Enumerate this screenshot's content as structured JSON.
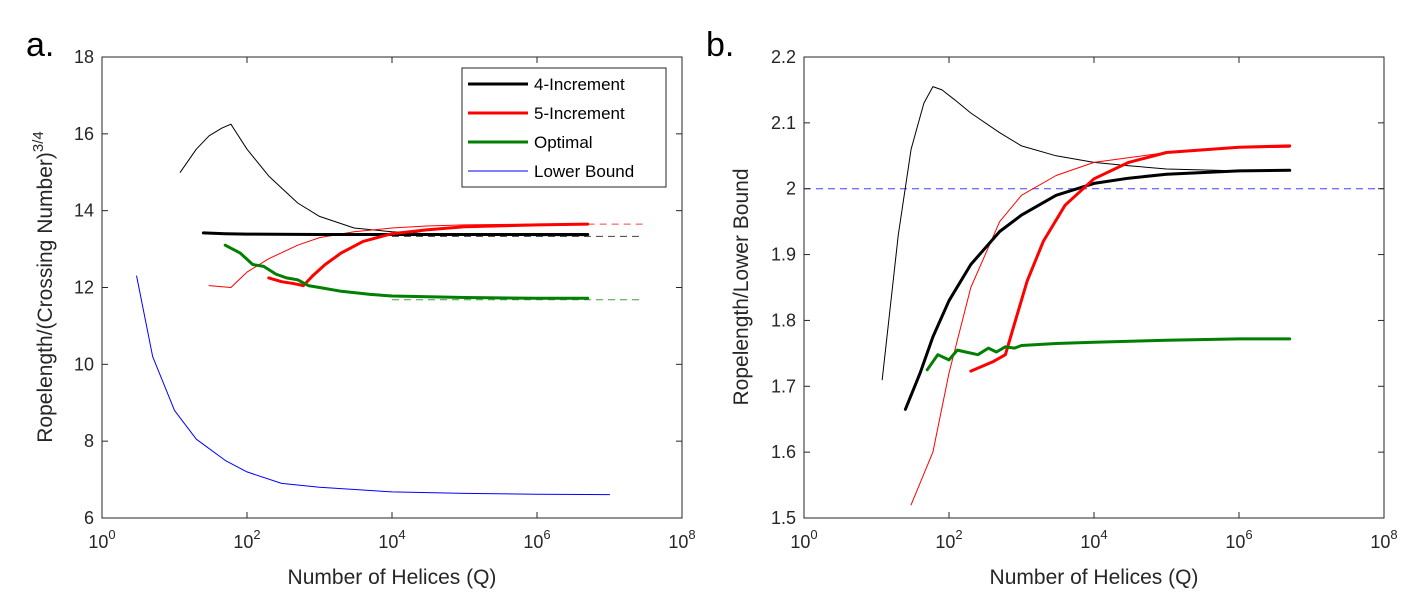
{
  "chart_data": [
    {
      "panel_label": "a.",
      "type": "line",
      "xscale": "log",
      "xlabel": "Number of Helices (Q)",
      "ylabel": "Ropelength/(Crossing Number)",
      "ylabel_exponent": "3/4",
      "xlim": [
        1,
        100000000
      ],
      "ylim": [
        6,
        18
      ],
      "xticks": [
        {
          "base": "10",
          "exp": "0",
          "value": 1
        },
        {
          "base": "10",
          "exp": "2",
          "value": 100
        },
        {
          "base": "10",
          "exp": "4",
          "value": 10000
        },
        {
          "base": "10",
          "exp": "6",
          "value": 1000000
        },
        {
          "base": "10",
          "exp": "8",
          "value": 100000000
        }
      ],
      "yticks": [
        "6",
        "8",
        "10",
        "12",
        "14",
        "16",
        "18"
      ],
      "legend": {
        "position": "top-right",
        "entries": [
          {
            "label": "4-Increment",
            "color": "#000000",
            "width": 3
          },
          {
            "label": "5-Increment",
            "color": "#ff0000",
            "width": 3
          },
          {
            "label": "Optimal",
            "color": "#007f00",
            "width": 3
          },
          {
            "label": "Lower Bound",
            "color": "#0000ff",
            "width": 1
          }
        ]
      },
      "series": [
        {
          "name": "4-Increment (thin)",
          "color": "#000000",
          "width": 1,
          "x": [
            12,
            20,
            30,
            45,
            60,
            100,
            200,
            500,
            1000,
            3000,
            10000,
            30000,
            100000,
            1000000,
            5000000
          ],
          "y": [
            15.0,
            15.6,
            15.95,
            16.15,
            16.25,
            15.6,
            14.9,
            14.2,
            13.85,
            13.55,
            13.45,
            13.4,
            13.38,
            13.35,
            13.35
          ]
        },
        {
          "name": "5-Increment (thin)",
          "color": "#ff0000",
          "width": 1,
          "x": [
            30,
            60,
            100,
            200,
            500,
            1000,
            3000,
            10000,
            30000,
            100000,
            1000000,
            5000000
          ],
          "y": [
            12.05,
            12.0,
            12.4,
            12.75,
            13.1,
            13.3,
            13.45,
            13.55,
            13.6,
            13.63,
            13.65,
            13.65
          ]
        },
        {
          "name": "4-Increment",
          "color": "#000000",
          "width": 3,
          "x": [
            25,
            50,
            100,
            1000,
            10000,
            100000,
            1000000,
            5000000
          ],
          "y": [
            13.42,
            13.4,
            13.39,
            13.38,
            13.38,
            13.38,
            13.38,
            13.38
          ]
        },
        {
          "name": "5-Increment",
          "color": "#ff0000",
          "width": 3,
          "x": [
            200,
            300,
            450,
            600,
            800,
            1200,
            2000,
            4000,
            10000,
            30000,
            100000,
            1000000,
            5000000
          ],
          "y": [
            12.25,
            12.15,
            12.1,
            12.05,
            12.3,
            12.6,
            12.9,
            13.2,
            13.4,
            13.5,
            13.58,
            13.63,
            13.65
          ]
        },
        {
          "name": "Optimal",
          "color": "#007f00",
          "width": 3,
          "x": [
            50,
            80,
            120,
            170,
            250,
            350,
            500,
            700,
            1000,
            2000,
            5000,
            10000,
            100000,
            1000000,
            5000000
          ],
          "y": [
            13.1,
            12.9,
            12.6,
            12.55,
            12.35,
            12.25,
            12.2,
            12.05,
            12.0,
            11.9,
            11.82,
            11.78,
            11.74,
            11.72,
            11.72
          ]
        },
        {
          "name": "Lower Bound",
          "color": "#0000ff",
          "width": 1,
          "x": [
            3,
            5,
            10,
            20,
            50,
            100,
            300,
            1000,
            10000,
            100000,
            1000000,
            10000000
          ],
          "y": [
            12.3,
            10.2,
            8.8,
            8.05,
            7.5,
            7.2,
            6.9,
            6.8,
            6.68,
            6.64,
            6.62,
            6.61
          ]
        }
      ],
      "reference_lines": [
        {
          "color": "#ff0000",
          "y": 13.65,
          "x_from": 5000000,
          "x_to": 30000000
        },
        {
          "color": "#000000",
          "y": 13.33,
          "x_from": 10000,
          "x_to": 30000000
        },
        {
          "color": "#007f00",
          "y": 11.68,
          "x_from": 10000,
          "x_to": 30000000
        }
      ]
    },
    {
      "panel_label": "b.",
      "type": "line",
      "xscale": "log",
      "xlabel": "Number of Helices (Q)",
      "ylabel": "Ropelength/Lower Bound",
      "xlim": [
        1,
        100000000
      ],
      "ylim": [
        1.5,
        2.2
      ],
      "xticks": [
        {
          "base": "10",
          "exp": "0",
          "value": 1
        },
        {
          "base": "10",
          "exp": "2",
          "value": 100
        },
        {
          "base": "10",
          "exp": "4",
          "value": 10000
        },
        {
          "base": "10",
          "exp": "6",
          "value": 1000000
        },
        {
          "base": "10",
          "exp": "8",
          "value": 100000000
        }
      ],
      "yticks": [
        "1.5",
        "1.6",
        "1.7",
        "1.8",
        "1.9",
        "2",
        "2.1",
        "2.2"
      ],
      "series": [
        {
          "name": "4-Increment (thin)",
          "color": "#000000",
          "width": 1,
          "x": [
            12,
            20,
            30,
            45,
            60,
            80,
            120,
            200,
            500,
            1000,
            3000,
            10000,
            30000,
            100000,
            1000000,
            5000000
          ],
          "y": [
            1.71,
            1.93,
            2.06,
            2.13,
            2.155,
            2.15,
            2.135,
            2.115,
            2.085,
            2.065,
            2.05,
            2.04,
            2.035,
            2.03,
            2.027,
            2.027
          ]
        },
        {
          "name": "5-Increment (thin)",
          "color": "#ff0000",
          "width": 1,
          "x": [
            30,
            60,
            100,
            200,
            500,
            1000,
            3000,
            10000,
            100000,
            1000000,
            5000000
          ],
          "y": [
            1.52,
            1.6,
            1.72,
            1.85,
            1.95,
            1.99,
            2.02,
            2.04,
            2.055,
            2.062,
            2.063
          ]
        },
        {
          "name": "4-Increment",
          "color": "#000000",
          "width": 3,
          "x": [
            25,
            40,
            60,
            100,
            200,
            500,
            1000,
            3000,
            10000,
            30000,
            100000,
            1000000,
            5000000
          ],
          "y": [
            1.665,
            1.72,
            1.775,
            1.83,
            1.885,
            1.935,
            1.96,
            1.99,
            2.008,
            2.016,
            2.022,
            2.027,
            2.028
          ]
        },
        {
          "name": "5-Increment",
          "color": "#ff0000",
          "width": 3,
          "x": [
            200,
            400,
            600,
            800,
            1200,
            2000,
            4000,
            10000,
            30000,
            100000,
            1000000,
            5000000
          ],
          "y": [
            1.723,
            1.737,
            1.748,
            1.795,
            1.86,
            1.92,
            1.975,
            2.015,
            2.04,
            2.055,
            2.063,
            2.065
          ]
        },
        {
          "name": "Optimal",
          "color": "#007f00",
          "width": 3,
          "x": [
            50,
            70,
            100,
            130,
            170,
            250,
            350,
            450,
            600,
            800,
            1000,
            3000,
            10000,
            100000,
            1000000,
            5000000
          ],
          "y": [
            1.725,
            1.748,
            1.74,
            1.755,
            1.752,
            1.748,
            1.758,
            1.752,
            1.76,
            1.758,
            1.762,
            1.765,
            1.767,
            1.77,
            1.772,
            1.772
          ]
        }
      ],
      "reference_lines": [
        {
          "color": "#0000ff",
          "y": 2.0,
          "x_from": 1,
          "x_to": 100000000
        }
      ]
    }
  ]
}
